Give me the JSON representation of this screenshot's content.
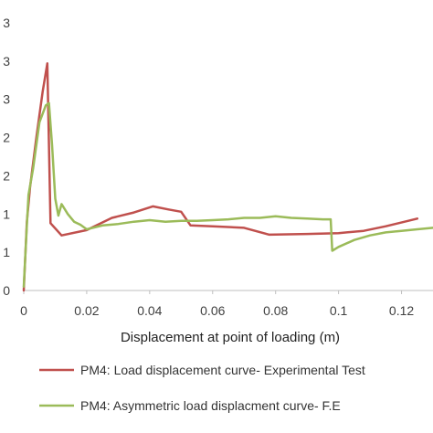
{
  "chart_data": {
    "type": "line",
    "xlabel": "Displacement at point of loading (m)",
    "ylabel": "",
    "xlim": [
      0,
      0.13
    ],
    "ylim": [
      0,
      3.5
    ],
    "x_ticks": [
      "0",
      "0.02",
      "0.04",
      "0.06",
      "0.08",
      "0.1",
      "0.12"
    ],
    "y_ticks": [
      "0",
      "1",
      "1",
      "2",
      "2",
      "3",
      "3",
      "3"
    ],
    "grid": false,
    "legend_position": "bottom",
    "series": [
      {
        "name": "PM4: Load displacement curve- Experimental Test",
        "color": "#C0504D",
        "points": [
          [
            0,
            0
          ],
          [
            0.001,
            0.9
          ],
          [
            0.002,
            1.35
          ],
          [
            0.004,
            2.0
          ],
          [
            0.006,
            2.6
          ],
          [
            0.0075,
            2.97
          ],
          [
            0.0085,
            0.88
          ],
          [
            0.012,
            0.72
          ],
          [
            0.02,
            0.79
          ],
          [
            0.028,
            0.95
          ],
          [
            0.035,
            1.02
          ],
          [
            0.041,
            1.1
          ],
          [
            0.046,
            1.06
          ],
          [
            0.05,
            1.03
          ],
          [
            0.053,
            0.85
          ],
          [
            0.06,
            0.84
          ],
          [
            0.07,
            0.82
          ],
          [
            0.078,
            0.73
          ],
          [
            0.09,
            0.74
          ],
          [
            0.1,
            0.75
          ],
          [
            0.108,
            0.78
          ],
          [
            0.115,
            0.84
          ],
          [
            0.121,
            0.9
          ],
          [
            0.125,
            0.94
          ]
        ]
      },
      {
        "name": "PM4: Asymmetric load displacment curve- F.E",
        "color": "#9BBB59",
        "points": [
          [
            0,
            0.05
          ],
          [
            0.001,
            0.85
          ],
          [
            0.0015,
            1.25
          ],
          [
            0.003,
            1.6
          ],
          [
            0.005,
            2.2
          ],
          [
            0.007,
            2.42
          ],
          [
            0.008,
            2.45
          ],
          [
            0.009,
            1.9
          ],
          [
            0.01,
            1.2
          ],
          [
            0.011,
            0.98
          ],
          [
            0.012,
            1.13
          ],
          [
            0.014,
            1.0
          ],
          [
            0.016,
            0.9
          ],
          [
            0.018,
            0.86
          ],
          [
            0.02,
            0.8
          ],
          [
            0.025,
            0.85
          ],
          [
            0.03,
            0.87
          ],
          [
            0.035,
            0.9
          ],
          [
            0.04,
            0.92
          ],
          [
            0.045,
            0.9
          ],
          [
            0.05,
            0.91
          ],
          [
            0.055,
            0.91
          ],
          [
            0.06,
            0.92
          ],
          [
            0.065,
            0.93
          ],
          [
            0.07,
            0.95
          ],
          [
            0.075,
            0.95
          ],
          [
            0.08,
            0.97
          ],
          [
            0.085,
            0.95
          ],
          [
            0.09,
            0.94
          ],
          [
            0.095,
            0.93
          ],
          [
            0.0975,
            0.93
          ],
          [
            0.098,
            0.52
          ],
          [
            0.1,
            0.57
          ],
          [
            0.105,
            0.66
          ],
          [
            0.11,
            0.72
          ],
          [
            0.115,
            0.76
          ],
          [
            0.12,
            0.78
          ],
          [
            0.125,
            0.8
          ],
          [
            0.13,
            0.82
          ]
        ]
      }
    ]
  }
}
